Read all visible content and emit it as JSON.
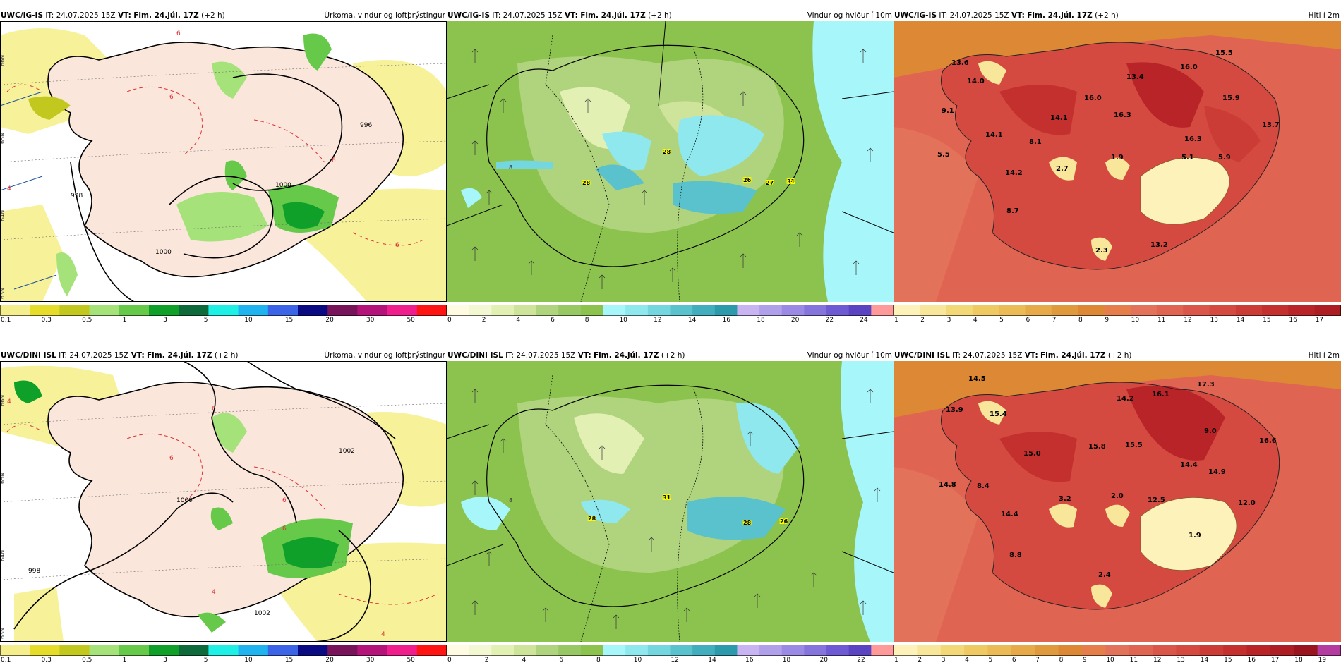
{
  "rows": [
    {
      "model_label": "UWC/IG-IS",
      "it_label": "IT:",
      "it_value": "24.07.2025 15Z",
      "vt_label": "VT:",
      "vt_value": "Fim. 24.júl. 17Z",
      "lead": "(+2 h)"
    },
    {
      "model_label": "UWC/DINI ISL",
      "it_label": "IT:",
      "it_value": "24.07.2025 15Z",
      "vt_label": "VT:",
      "vt_value": "Fim. 24.júl. 17Z",
      "lead": "(+2 h)"
    }
  ],
  "panel_titles": {
    "precip": "Úrkoma, vindur og loftþrýstingur",
    "wind": "Vindur og hviður í 10m",
    "temp": "Hiti í 2m"
  },
  "colorbars": {
    "precip": {
      "ticks": [
        "0.1",
        "0.3",
        "0.5",
        "1",
        "3",
        "5",
        "10",
        "15",
        "20",
        "30",
        "50"
      ],
      "colors": [
        "#f5ee8c",
        "#e6dc2a",
        "#c3c81e",
        "#a6e27a",
        "#66c94a",
        "#0fa02a",
        "#0e6a3a",
        "#1ef0e6",
        "#1fb4f0",
        "#3c64e6",
        "#0a0a82",
        "#78145a",
        "#b4147a",
        "#f01e8c",
        "#ff1414"
      ]
    },
    "wind": {
      "ticks": [
        "0",
        "2",
        "4",
        "6",
        "8",
        "10",
        "12",
        "14",
        "16",
        "18",
        "20",
        "22",
        "24"
      ],
      "ticks_alt": [
        "0",
        "2",
        "4",
        "6",
        "8",
        "10",
        "12",
        "14",
        "16",
        "18",
        "20",
        "22"
      ],
      "colors": [
        "#fffbe2",
        "#f4f8d2",
        "#e3f0b4",
        "#cde49a",
        "#b0d47e",
        "#98c864",
        "#8cc34f",
        "#a7f6f9",
        "#8ee8ee",
        "#74d6de",
        "#5ac2cd",
        "#42aebd",
        "#2d9aab",
        "#c8b4f0",
        "#b0a0ea",
        "#9a8ae4",
        "#8474dc",
        "#6e5ad2",
        "#5a44c2",
        "#ff9a9a"
      ]
    },
    "temp_top": {
      "ticks": [
        "1",
        "2",
        "3",
        "4",
        "5",
        "6",
        "7",
        "8",
        "9",
        "10",
        "11",
        "12",
        "13",
        "14",
        "15",
        "16",
        "17"
      ],
      "colors": [
        "#fdf3ba",
        "#f8e79a",
        "#f3d878",
        "#efc962",
        "#ebbb55",
        "#e6ab48",
        "#e09a3e",
        "#dc8834",
        "#e67e4c",
        "#e3725a",
        "#e06452",
        "#da564a",
        "#d44a40",
        "#cc3c36",
        "#c4302e",
        "#b82428",
        "#ac1e24"
      ]
    },
    "temp_bottom": {
      "ticks": [
        "1",
        "2",
        "3",
        "4",
        "5",
        "6",
        "7",
        "8",
        "9",
        "10",
        "11",
        "12",
        "13",
        "14",
        "15",
        "16",
        "17",
        "18",
        "19"
      ],
      "colors": [
        "#fdf3ba",
        "#f8e79a",
        "#f3d878",
        "#efc962",
        "#ebbb55",
        "#e6ab48",
        "#e09a3e",
        "#dc8834",
        "#e67e4c",
        "#e3725a",
        "#e06452",
        "#da564a",
        "#d44a40",
        "#cc3c36",
        "#c4302e",
        "#b82428",
        "#ac1e24",
        "#9a1420",
        "#b43ca0"
      ]
    }
  },
  "map_labels": {
    "precip_top": {
      "lat": [
        "66N",
        "65N",
        "64N",
        "63N"
      ],
      "isobars": [
        "1000",
        "998",
        "996",
        "1000"
      ],
      "dashes": [
        "6",
        "6",
        "6",
        "6",
        "4"
      ]
    },
    "precip_bottom": {
      "lat": [
        "66N",
        "65N",
        "64N",
        "63N"
      ],
      "isobars": [
        "1000",
        "998",
        "1002",
        "1002"
      ],
      "dashes": [
        "6",
        "6",
        "6",
        "4",
        "4",
        "4",
        "6"
      ]
    },
    "wind_top": {
      "gusts": [
        "28",
        "28",
        "26",
        "27",
        "31"
      ]
    },
    "wind_bottom": {
      "gusts": [
        "28",
        "31",
        "28",
        "26"
      ]
    },
    "temp_top": {
      "values": [
        "13.6",
        "14.0",
        "9.1",
        "16.0",
        "15.5",
        "13.4",
        "16.0",
        "16.3",
        "14.1",
        "15.9",
        "13.7",
        "16.3",
        "8.1",
        "5.5",
        "2.7",
        "1.9",
        "5.1",
        "5.9",
        "14.2",
        "8.7",
        "2.3",
        "13.2",
        "14.1"
      ]
    },
    "temp_bottom": {
      "values": [
        "14.5",
        "13.9",
        "15.4",
        "14.2",
        "16.1",
        "17.3",
        "9.0",
        "16.6",
        "15.8",
        "15.5",
        "15.0",
        "14.4",
        "14.8",
        "8.4",
        "3.2",
        "2.0",
        "12.5",
        "14.9",
        "12.0",
        "14.4",
        "1.9",
        "8.8",
        "2.4"
      ]
    }
  },
  "colors": {
    "precip_bg": "#ffffff",
    "land": "#fbe6dc",
    "wind_bg": "#8cc34f",
    "temp_bg": "#e06452"
  }
}
